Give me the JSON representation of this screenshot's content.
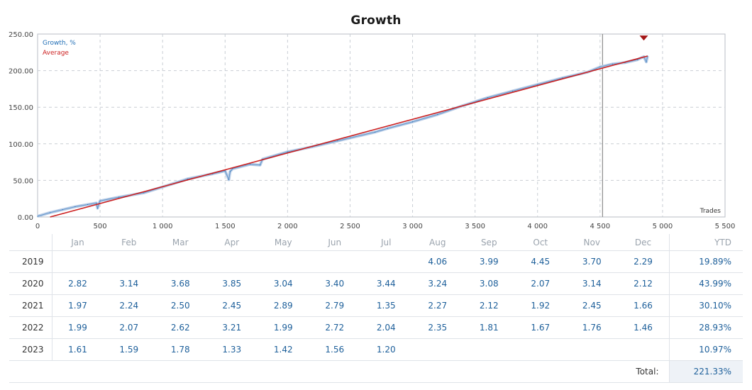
{
  "chart_data": {
    "type": "line",
    "title": "Growth",
    "xlabel": "Trades",
    "ylabel": "",
    "xlim": [
      0,
      5500
    ],
    "ylim": [
      0,
      250
    ],
    "x_ticks": [
      0,
      500,
      1000,
      1500,
      2000,
      2500,
      3000,
      3500,
      4000,
      4500,
      5000,
      5500
    ],
    "x_tick_labels": [
      "0",
      "500",
      "1 000",
      "1 500",
      "2 000",
      "2 500",
      "3 000",
      "3 500",
      "4 000",
      "4 500",
      "5 000",
      "5 500"
    ],
    "y_ticks": [
      0,
      50,
      100,
      150,
      200,
      250
    ],
    "y_tick_labels": [
      "0.00",
      "50.00",
      "100.00",
      "150.00",
      "200.00",
      "250.00"
    ],
    "grid": true,
    "legend": "top-left",
    "marker_line_x": 4520,
    "series": [
      {
        "name": "Growth, %",
        "color": "#1f6db5",
        "x": [
          0,
          100,
          200,
          300,
          400,
          470,
          480,
          490,
          500,
          650,
          850,
          1000,
          1200,
          1400,
          1500,
          1530,
          1540,
          1550,
          1560,
          1700,
          1780,
          1800,
          2000,
          2200,
          2400,
          2500,
          2700,
          2800,
          3000,
          3200,
          3400,
          3600,
          3800,
          4000,
          4200,
          4400,
          4500,
          4600,
          4700,
          4800,
          4850,
          4870,
          4880
        ],
        "y": [
          1,
          6,
          10,
          14,
          17,
          19,
          12,
          18,
          22,
          27,
          33,
          41,
          52,
          59,
          63,
          51,
          62,
          64,
          66,
          72,
          71,
          79,
          89,
          96,
          104,
          108,
          116,
          121,
          130,
          140,
          152,
          163,
          172,
          181,
          190,
          198,
          205,
          209,
          211,
          215,
          219,
          212,
          220
        ]
      },
      {
        "name": "Average",
        "color": "#cc1f1f",
        "x": [
          100,
          4880
        ],
        "y": [
          0,
          220
        ]
      }
    ],
    "marker": {
      "x": 4850,
      "y": 248,
      "color": "#a31515"
    }
  },
  "table": {
    "headers": [
      "",
      "Jan",
      "Feb",
      "Mar",
      "Apr",
      "May",
      "Jun",
      "Jul",
      "Aug",
      "Sep",
      "Oct",
      "Nov",
      "Dec",
      "YTD"
    ],
    "rows": [
      {
        "year": "2019",
        "values": [
          "",
          "",
          "",
          "",
          "",
          "",
          "",
          "4.06",
          "3.99",
          "4.45",
          "3.70",
          "2.29"
        ],
        "ytd": "19.89%"
      },
      {
        "year": "2020",
        "values": [
          "2.82",
          "3.14",
          "3.68",
          "3.85",
          "3.04",
          "3.40",
          "3.44",
          "3.24",
          "3.08",
          "2.07",
          "3.14",
          "2.12"
        ],
        "ytd": "43.99%"
      },
      {
        "year": "2021",
        "values": [
          "1.97",
          "2.24",
          "2.50",
          "2.45",
          "2.89",
          "2.79",
          "1.35",
          "2.27",
          "2.12",
          "1.92",
          "2.45",
          "1.66"
        ],
        "ytd": "30.10%"
      },
      {
        "year": "2022",
        "values": [
          "1.99",
          "2.07",
          "2.62",
          "3.21",
          "1.99",
          "2.72",
          "2.04",
          "2.35",
          "1.81",
          "1.67",
          "1.76",
          "1.46"
        ],
        "ytd": "28.93%"
      },
      {
        "year": "2023",
        "values": [
          "1.61",
          "1.59",
          "1.78",
          "1.33",
          "1.42",
          "1.56",
          "1.20",
          "",
          "",
          "",
          "",
          ""
        ],
        "ytd": "10.97%"
      }
    ],
    "total_label": "Total:",
    "total_value": "221.33%"
  }
}
